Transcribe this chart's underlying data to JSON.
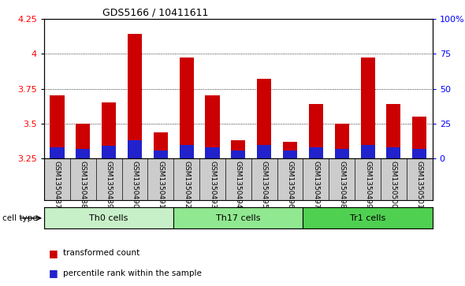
{
  "title": "GDS5166 / 10411611",
  "samples": [
    "GSM1350487",
    "GSM1350488",
    "GSM1350489",
    "GSM1350490",
    "GSM1350491",
    "GSM1350492",
    "GSM1350493",
    "GSM1350494",
    "GSM1350495",
    "GSM1350496",
    "GSM1350497",
    "GSM1350498",
    "GSM1350499",
    "GSM1350500",
    "GSM1350501"
  ],
  "transformed_count": [
    3.7,
    3.5,
    3.65,
    4.14,
    3.44,
    3.97,
    3.7,
    3.38,
    3.82,
    3.37,
    3.64,
    3.5,
    3.97,
    3.64,
    3.55
  ],
  "percentile_rank_pct": [
    8,
    7,
    9,
    13,
    6,
    10,
    8,
    6,
    10,
    6,
    8,
    7,
    10,
    8,
    7
  ],
  "cell_types": [
    {
      "label": "Th0 cells",
      "start": 0,
      "end": 5,
      "color": "#c8f0c8"
    },
    {
      "label": "Th17 cells",
      "start": 5,
      "end": 10,
      "color": "#90e890"
    },
    {
      "label": "Tr1 cells",
      "start": 10,
      "end": 15,
      "color": "#50d050"
    }
  ],
  "ylim_left": [
    3.25,
    4.25
  ],
  "ylim_right": [
    0,
    100
  ],
  "yticks_left": [
    3.25,
    3.5,
    3.75,
    4.0,
    4.25
  ],
  "ytick_labels_left": [
    "3.25",
    "3.5",
    "3.75",
    "4",
    "4.25"
  ],
  "yticks_right": [
    0,
    25,
    50,
    75,
    100
  ],
  "ytick_labels_right": [
    "0",
    "25",
    "50",
    "75",
    "100%"
  ],
  "bar_color_red": "#cc0000",
  "bar_color_blue": "#2222cc",
  "bar_width": 0.55,
  "background_plot": "#ffffff",
  "background_xlabels": "#cccccc",
  "legend_red_label": "transformed count",
  "legend_blue_label": "percentile rank within the sample",
  "cell_type_label": "cell type"
}
